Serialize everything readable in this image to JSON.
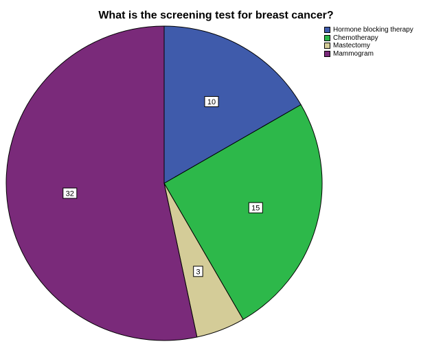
{
  "chart_data": {
    "type": "pie",
    "title": "What is the screening test for breast cancer?",
    "categories": [
      "Hormone blocking therapy",
      "Chemotherapy",
      "Mastectomy",
      "Mammogram"
    ],
    "values": [
      10,
      15,
      3,
      32
    ],
    "colors": [
      "#3f5bab",
      "#2db84a",
      "#d4cc98",
      "#7a2a7a"
    ],
    "legend_position": "top-right",
    "start_angle_deg": 0,
    "direction": "clockwise"
  }
}
